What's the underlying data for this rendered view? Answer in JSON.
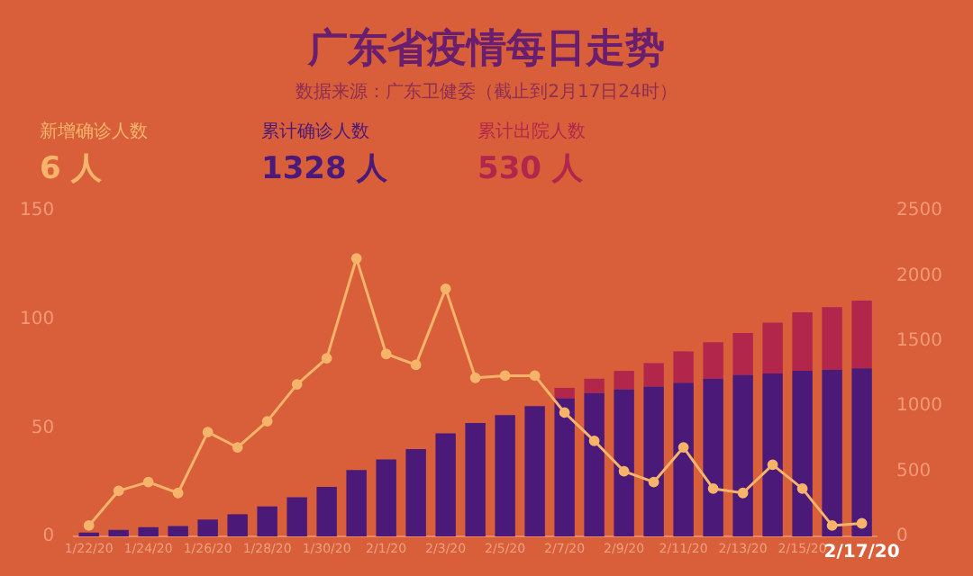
{
  "chart_data": {
    "type": "bar",
    "title": "广东省疫情每日走势",
    "subtitle": "数据来源：广东卫健委（截止到2月17日24时）",
    "annotations": [
      "新增确诊人数",
      "6 人",
      "累计确诊人数",
      "1328 人",
      "累计出院人数",
      "530 人"
    ],
    "categories": [
      "1/22/20",
      null,
      "1/24/20",
      null,
      "1/26/20",
      null,
      "1/28/20",
      null,
      "1/30/20",
      null,
      "2/1/20",
      null,
      "2/3/20",
      null,
      "2/5/20",
      null,
      "2/7/20",
      null,
      "2/9/20",
      null,
      "2/11/20",
      null,
      "2/13/20",
      null,
      "2/15/20",
      null,
      "2/17/20"
    ],
    "stacked": true,
    "series": [
      {
        "axis": "y2",
        "color": "#4b1a78",
        "values": [
          30,
          50,
          70,
          80,
          130,
          170,
          230,
          300,
          380,
          510,
          590,
          670,
          790,
          870,
          930,
          1000,
          1060,
          1100,
          1130,
          1150,
          1180,
          1210,
          1240,
          1250,
          1270,
          1280,
          1290
        ]
      },
      {
        "axis": "y2",
        "color": "#b3264c",
        "values": [
          0,
          0,
          0,
          0,
          0,
          0,
          0,
          0,
          0,
          0,
          0,
          0,
          0,
          0,
          0,
          0,
          80,
          110,
          140,
          180,
          240,
          280,
          320,
          390,
          450,
          480,
          520
        ]
      },
      {
        "type": "line",
        "axis": "y",
        "color": "#f6b46a",
        "values": [
          5,
          21,
          25,
          20,
          48,
          41,
          53,
          70,
          82,
          128,
          84,
          79,
          114,
          73,
          74,
          74,
          57,
          44,
          30,
          25,
          41,
          22,
          20,
          33,
          22,
          5,
          6
        ]
      }
    ],
    "ylim": [
      0,
      150
    ],
    "yticks": [
      0,
      50,
      100,
      150
    ],
    "y2lim": [
      0,
      2500
    ],
    "y2ticks": [
      0,
      500,
      1000,
      1500,
      2000,
      2500
    ],
    "grid": false,
    "legend": false,
    "marker": "circle",
    "line_style": "solid"
  }
}
